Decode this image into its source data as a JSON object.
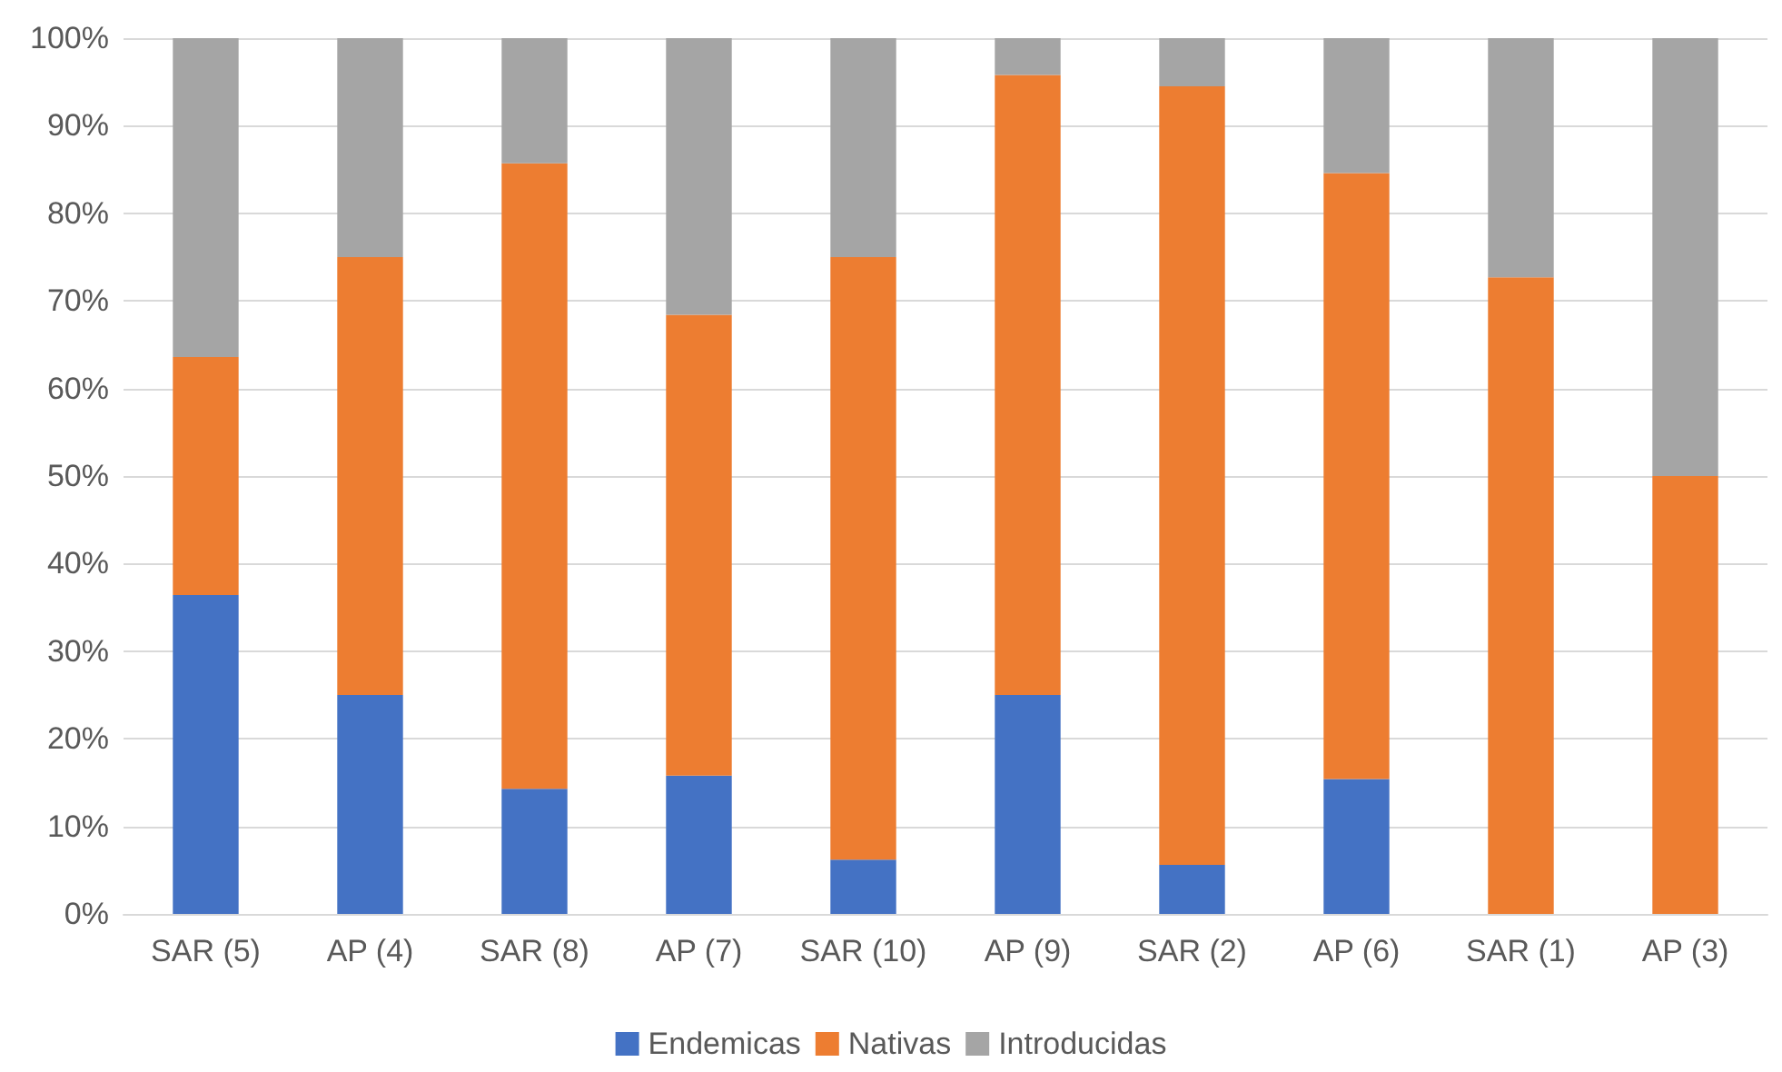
{
  "chart_data": {
    "type": "bar",
    "stacked": true,
    "categories": [
      "SAR (5)",
      "AP (4)",
      "SAR (8)",
      "AP (7)",
      "SAR (10)",
      "AP (9)",
      "SAR (2)",
      "AP (6)",
      "SAR (1)",
      "AP (3)"
    ],
    "series": [
      {
        "name": "Endemicas",
        "color": "#4472c4",
        "values": [
          36.4,
          25,
          14.3,
          15.8,
          6.2,
          25,
          5.6,
          15.4,
          0,
          0
        ]
      },
      {
        "name": "Nativas",
        "color": "#ed7d31",
        "values": [
          27.2,
          50,
          71.4,
          52.6,
          68.8,
          70.8,
          88.9,
          69.2,
          72.7,
          50
        ]
      },
      {
        "name": "Introducidas",
        "color": "#a5a5a5",
        "values": [
          36.4,
          25,
          14.3,
          31.6,
          25,
          4.2,
          5.5,
          15.4,
          27.3,
          50
        ]
      }
    ],
    "ylim": [
      0,
      100
    ],
    "yticks": [
      {
        "value": 0,
        "label": "0%"
      },
      {
        "value": 10,
        "label": "10%"
      },
      {
        "value": 20,
        "label": "20%"
      },
      {
        "value": 30,
        "label": "30%"
      },
      {
        "value": 40,
        "label": "40%"
      },
      {
        "value": 50,
        "label": "50%"
      },
      {
        "value": 60,
        "label": "60%"
      },
      {
        "value": 70,
        "label": "70%"
      },
      {
        "value": 80,
        "label": "80%"
      },
      {
        "value": 90,
        "label": "90%"
      },
      {
        "value": 100,
        "label": "100%"
      }
    ],
    "grid": "y",
    "legend": "bottom"
  }
}
